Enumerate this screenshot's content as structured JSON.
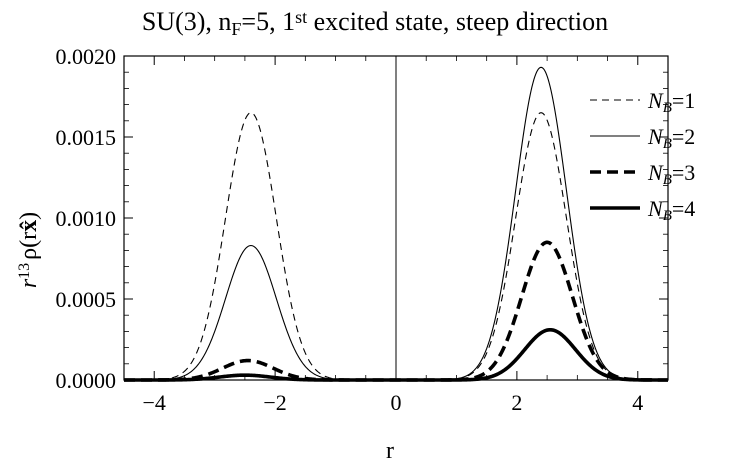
{
  "chart_data": {
    "type": "line",
    "title": "SU(3), n_F=5, 1^st excited state, steep direction",
    "title_parts": {
      "a": "SU(3), n",
      "a_sub": "F",
      "b": "=5, 1",
      "b_sup": "st",
      "c": " excited state, steep direction"
    },
    "xlabel": "r",
    "ylabel": "r^13 ρ(r x̂)",
    "ylabel_parts": {
      "base": "r",
      "sup": "13",
      "rest": "ρ(r",
      "hat": "x̂",
      "close": ")"
    },
    "xlim": [
      -4.5,
      4.5
    ],
    "ylim": [
      0,
      0.002
    ],
    "x_ticks": [
      {
        "value": -4,
        "label": "−4"
      },
      {
        "value": -2,
        "label": "−2"
      },
      {
        "value": 0,
        "label": "0"
      },
      {
        "value": 2,
        "label": "2"
      },
      {
        "value": 4,
        "label": "4"
      }
    ],
    "y_ticks": [
      {
        "value": 0.0,
        "label": "0.0000"
      },
      {
        "value": 0.0005,
        "label": "0.0005"
      },
      {
        "value": 0.001,
        "label": "0.0010"
      },
      {
        "value": 0.0015,
        "label": "0.0015"
      },
      {
        "value": 0.002,
        "label": "0.0020"
      }
    ],
    "legend_position": "right",
    "series": [
      {
        "name": "N_B=1",
        "label_base": "N",
        "label_sub": "B",
        "label_rest": "=1",
        "style": "thin-dashed",
        "peaks": [
          {
            "x": -2.4,
            "y": 0.00165,
            "width": 0.42
          },
          {
            "x": 2.4,
            "y": 0.00165,
            "width": 0.42
          }
        ]
      },
      {
        "name": "N_B=2",
        "label_base": "N",
        "label_sub": "B",
        "label_rest": "=2",
        "style": "thin-solid",
        "peaks": [
          {
            "x": -2.4,
            "y": 0.00083,
            "width": 0.42
          },
          {
            "x": 2.4,
            "y": 0.00193,
            "width": 0.42
          }
        ]
      },
      {
        "name": "N_B=3",
        "label_base": "N",
        "label_sub": "B",
        "label_rest": "=3",
        "style": "thick-dashed",
        "peaks": [
          {
            "x": -2.45,
            "y": 0.00012,
            "width": 0.42
          },
          {
            "x": 2.5,
            "y": 0.00085,
            "width": 0.42
          }
        ]
      },
      {
        "name": "N_B=4",
        "label_base": "N",
        "label_sub": "B",
        "label_rest": "=4",
        "style": "thick-solid",
        "peaks": [
          {
            "x": -2.5,
            "y": 3e-05,
            "width": 0.42
          },
          {
            "x": 2.55,
            "y": 0.00031,
            "width": 0.42
          }
        ]
      }
    ],
    "color": "#000000"
  }
}
